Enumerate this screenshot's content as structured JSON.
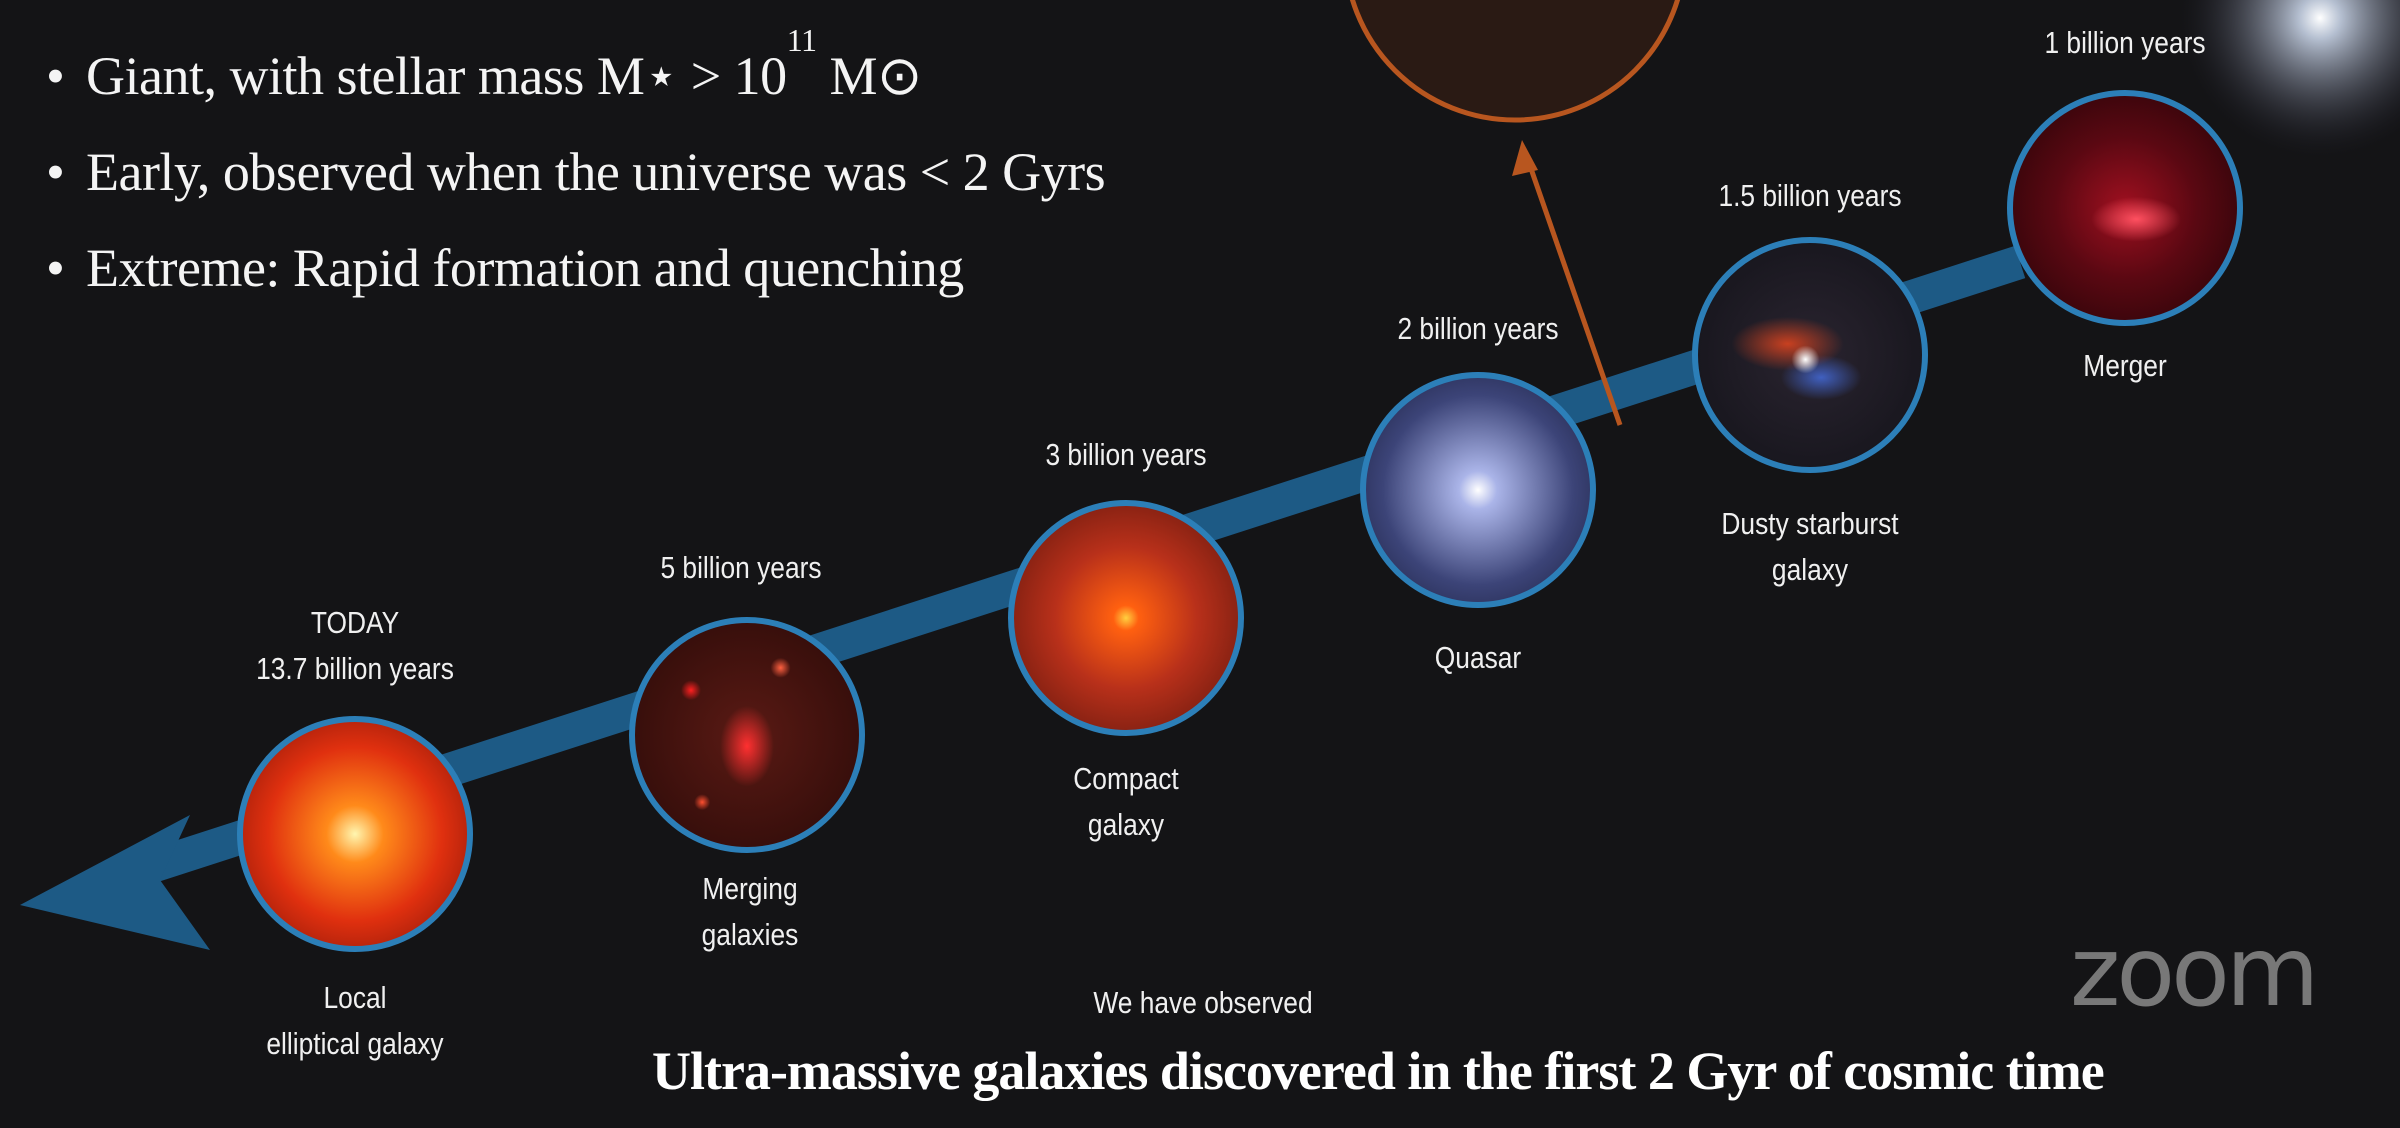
{
  "bullets": [
    {
      "text": "Giant, with stellar mass M⋆ > 10",
      "sup": "11",
      "tail": " M⊙"
    },
    {
      "text": "Early, observed when the universe was < 2 Gyrs"
    },
    {
      "text": "Extreme: Rapid formation and quenching"
    }
  ],
  "bullet_symbol": "•",
  "timeline": [
    {
      "age": "TODAY",
      "age2": "13.7 billion years",
      "name": "Local",
      "name2": "elliptical galaxy",
      "color": "#ff5a1a"
    },
    {
      "age": "5 billion years",
      "name": "Merging",
      "name2": "galaxies",
      "color": "#a8221a"
    },
    {
      "age": "3 billion years",
      "name": "Compact",
      "name2": "galaxy",
      "color": "#c8361a"
    },
    {
      "age": "2 billion years",
      "name": "Quasar",
      "color": "#5c6aa0"
    },
    {
      "age": "1.5 billion years",
      "name": "Dusty starburst",
      "name2": "galaxy",
      "color": "#2a2a3a"
    },
    {
      "age": "1 billion years",
      "name": "Merger",
      "color": "#7a0f18"
    }
  ],
  "observed_label": "We have observed",
  "footer_title": "Ultra-massive galaxies discovered in the first 2 Gyr of cosmic time",
  "watermark": "zoom",
  "colors": {
    "arrow": "#1d5a85",
    "ring": "#2c7fb8",
    "pointer": "#b8561f"
  }
}
